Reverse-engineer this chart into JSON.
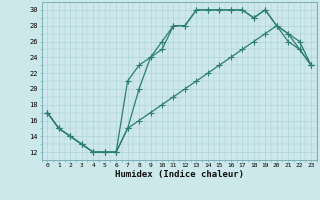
{
  "title": "",
  "xlabel": "Humidex (Indice chaleur)",
  "ylabel": "",
  "xlim": [
    -0.5,
    23.5
  ],
  "ylim": [
    11,
    31
  ],
  "yticks": [
    12,
    14,
    16,
    18,
    20,
    22,
    24,
    26,
    28,
    30
  ],
  "xticks": [
    0,
    1,
    2,
    3,
    4,
    5,
    6,
    7,
    8,
    9,
    10,
    11,
    12,
    13,
    14,
    15,
    16,
    17,
    18,
    19,
    20,
    21,
    22,
    23
  ],
  "background_color": "#cce8ea",
  "grid_color": "#aacfd4",
  "line_color": "#2d7d74",
  "line1_x": [
    0,
    1,
    2,
    3,
    4,
    5,
    6,
    7,
    8,
    9,
    10,
    11,
    12,
    13,
    14,
    15,
    16,
    17,
    18,
    19,
    20,
    21,
    22,
    23
  ],
  "line1_y": [
    17,
    15,
    14,
    13,
    12,
    12,
    12,
    15,
    20,
    24,
    26,
    28,
    28,
    30,
    30,
    30,
    30,
    30,
    29,
    30,
    28,
    26,
    25,
    23
  ],
  "line2_x": [
    0,
    1,
    2,
    3,
    4,
    5,
    6,
    7,
    8,
    9,
    10,
    11,
    12,
    13,
    14,
    15,
    16,
    17,
    18,
    19,
    20,
    21,
    22,
    23
  ],
  "line2_y": [
    17,
    15,
    14,
    13,
    12,
    12,
    12,
    21,
    23,
    24,
    25,
    28,
    28,
    30,
    30,
    30,
    30,
    30,
    29,
    30,
    28,
    27,
    25,
    23
  ],
  "line3_x": [
    0,
    1,
    2,
    3,
    4,
    5,
    6,
    7,
    8,
    9,
    10,
    11,
    12,
    13,
    14,
    15,
    16,
    17,
    18,
    19,
    20,
    21,
    22,
    23
  ],
  "line3_y": [
    17,
    15,
    14,
    13,
    12,
    12,
    12,
    15,
    16,
    17,
    18,
    19,
    20,
    21,
    22,
    23,
    24,
    25,
    26,
    27,
    28,
    27,
    26,
    23
  ],
  "figsize": [
    3.2,
    2.0
  ],
  "dpi": 100
}
